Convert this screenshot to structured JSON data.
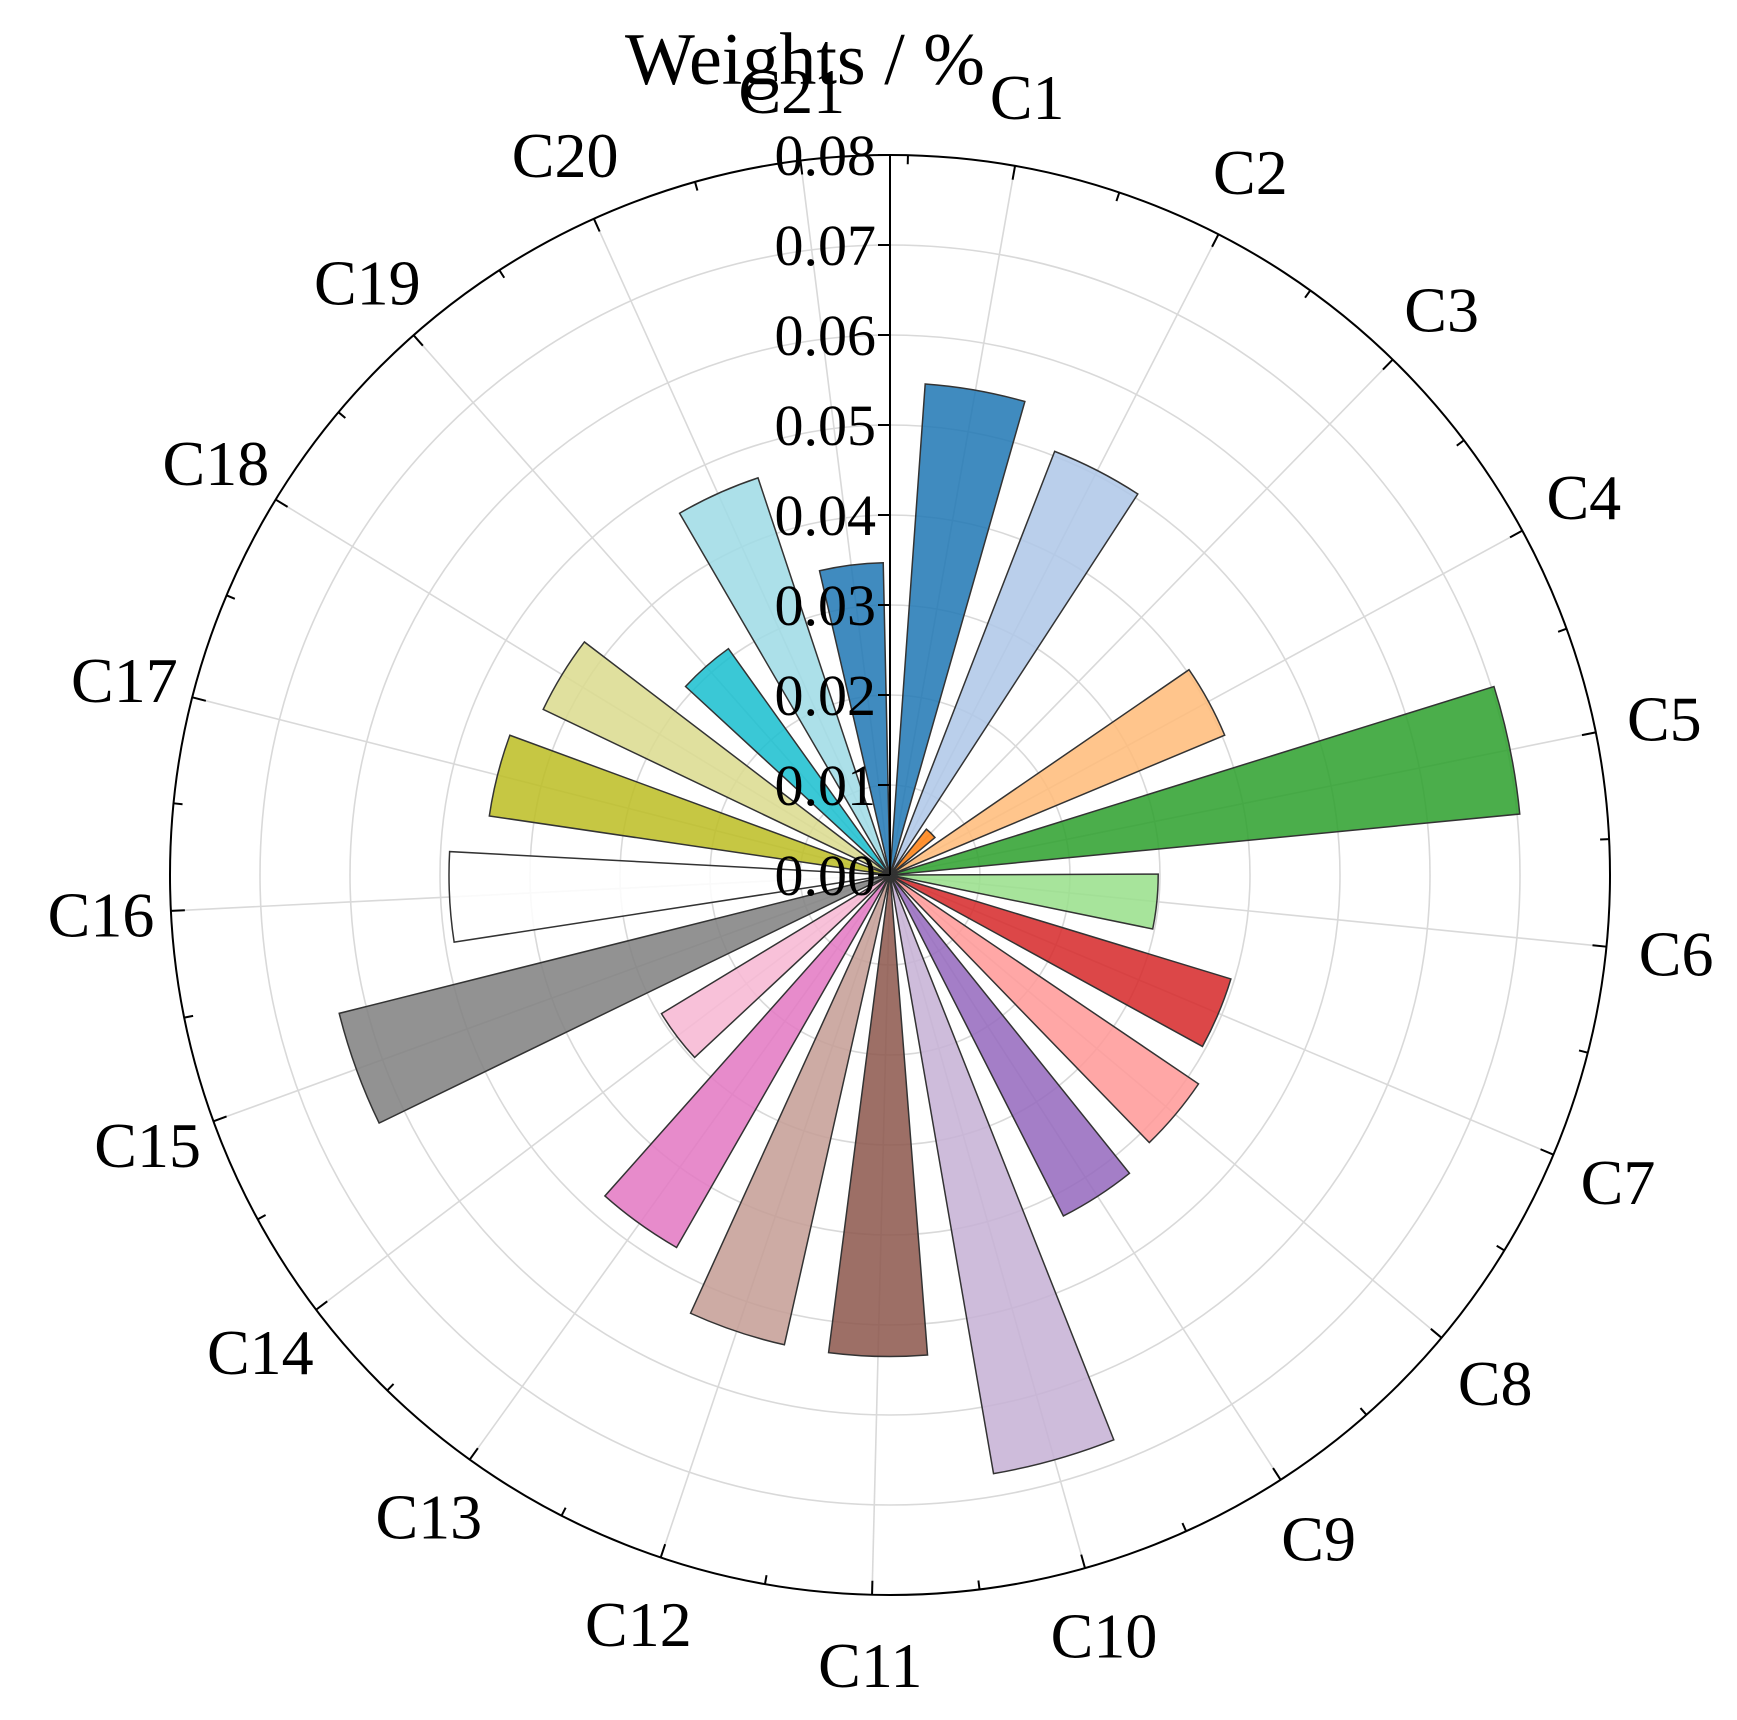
{
  "chart_data": {
    "type": "polar-bar",
    "title": "Weights / %",
    "categories": [
      "C1",
      "C2",
      "C3",
      "C4",
      "C5",
      "C6",
      "C7",
      "C8",
      "C9",
      "C10",
      "C11",
      "C12",
      "C13",
      "C14",
      "C15",
      "C16",
      "C17",
      "C18",
      "C19",
      "C20",
      "C21"
    ],
    "values": [
      0.0547,
      0.0505,
      0.0065,
      0.0403,
      0.0703,
      0.0298,
      0.0396,
      0.0414,
      0.0425,
      0.0675,
      0.0535,
      0.0535,
      0.0477,
      0.0297,
      0.0631,
      0.049,
      0.045,
      0.0427,
      0.0309,
      0.0465,
      0.0347
    ],
    "colors": [
      "#1f77b4",
      "#aec7e8",
      "#ff7f0e",
      "#ffbb78",
      "#2ca02c",
      "#98df8a",
      "#d62728",
      "#ff9896",
      "#9467bd",
      "#c5b0d5",
      "#8c564b",
      "#c49c94",
      "#e377c2",
      "#f7b6d2",
      "#7f7f7f",
      "#ffffff",
      "#bcbd22",
      "#dbdb8d",
      "#17becf",
      "#9edae5",
      "#1f77b4"
    ],
    "r_ticks": [
      "0.00",
      "0.01",
      "0.02",
      "0.03",
      "0.04",
      "0.05",
      "0.06",
      "0.07",
      "0.08"
    ],
    "rlim": [
      0,
      0.08
    ],
    "grid": true
  }
}
